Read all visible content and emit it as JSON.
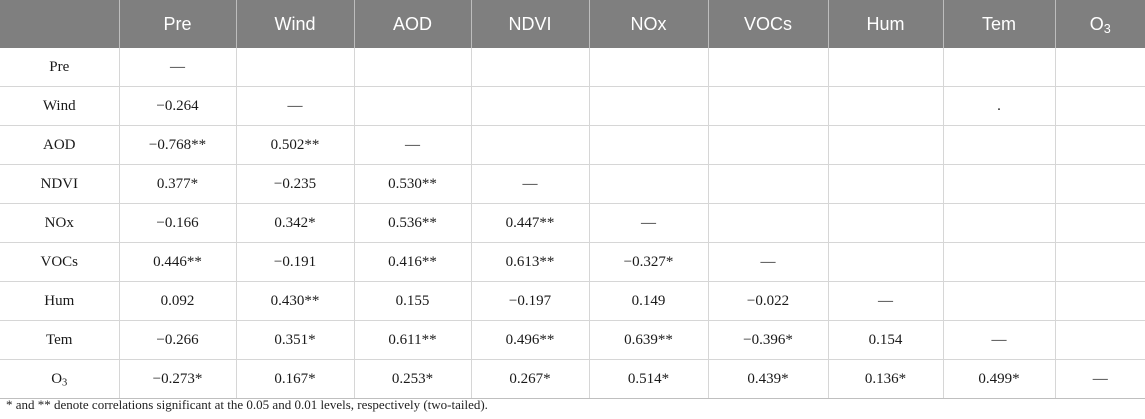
{
  "columns": [
    {
      "label": ""
    },
    {
      "label": "Pre"
    },
    {
      "label": "Wind"
    },
    {
      "label": "AOD"
    },
    {
      "label": "NDVI"
    },
    {
      "label": "NOx"
    },
    {
      "label": "VOCs"
    },
    {
      "label": "Hum"
    },
    {
      "label": "Tem"
    },
    {
      "label": "O",
      "sub": "3"
    }
  ],
  "rows": [
    {
      "label": "Pre",
      "cells": [
        "—",
        "",
        "",
        "",
        "",
        "",
        "",
        "",
        ""
      ]
    },
    {
      "label": "Wind",
      "cells": [
        "−0.264",
        "—",
        "",
        "",
        "",
        "",
        "",
        ".",
        ""
      ]
    },
    {
      "label": "AOD",
      "cells": [
        "−0.768**",
        "0.502**",
        "—",
        "",
        "",
        "",
        "",
        "",
        ""
      ]
    },
    {
      "label": "NDVI",
      "cells": [
        "0.377*",
        "−0.235",
        "0.530**",
        "—",
        "",
        "",
        "",
        "",
        ""
      ]
    },
    {
      "label": "NOx",
      "cells": [
        "−0.166",
        "0.342*",
        "0.536**",
        "0.447**",
        "—",
        "",
        "",
        "",
        ""
      ]
    },
    {
      "label": "VOCs",
      "cells": [
        "0.446**",
        "−0.191",
        "0.416**",
        "0.613**",
        "−0.327*",
        "—",
        "",
        "",
        ""
      ]
    },
    {
      "label": "Hum",
      "cells": [
        "0.092",
        "0.430**",
        "0.155",
        "−0.197",
        "0.149",
        "−0.022",
        "—",
        "",
        ""
      ]
    },
    {
      "label": "Tem",
      "cells": [
        "−0.266",
        "0.351*",
        "0.611**",
        "0.496**",
        "0.639**",
        "−0.396*",
        "0.154",
        "—",
        ""
      ]
    },
    {
      "label": "O",
      "sub": "3",
      "cells": [
        "−0.273*",
        "0.167*",
        "0.253*",
        "0.267*",
        "0.514*",
        "0.439*",
        "0.136*",
        "0.499*",
        "—"
      ]
    }
  ],
  "footnote": "* and ** denote correlations significant at the 0.05 and 0.01 levels, respectively (two-tailed).",
  "colors": {
    "header_bg": "#7f7f7f",
    "header_text": "#ffffff",
    "grid": "#d6d6d6"
  }
}
